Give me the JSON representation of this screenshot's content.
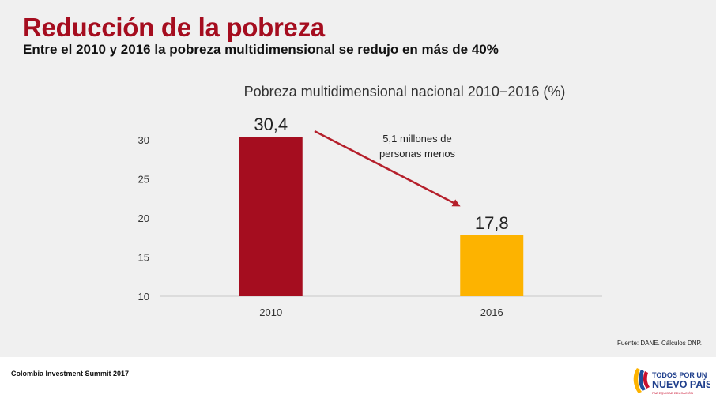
{
  "header": {
    "title": "Reducción de la pobreza",
    "subtitle": "Entre el 2010 y 2016 la pobreza multidimensional se redujo en más de 40%"
  },
  "chart_data": {
    "type": "bar",
    "title": "Pobreza multidimensional nacional 2010−2016 (%)",
    "categories": [
      "2010",
      "2016"
    ],
    "values": [
      30.4,
      17.8
    ],
    "value_labels": [
      "30,4",
      "17,8"
    ],
    "colors": [
      "#a50d1f",
      "#fdb300"
    ],
    "ylim": [
      10,
      30
    ],
    "yticks": [
      "10",
      "15",
      "20",
      "25",
      "30"
    ],
    "xlabel": "",
    "ylabel": "",
    "annotation": {
      "line1": "5,1 millones de",
      "line2": "personas menos",
      "arrow_color": "#b51f2b"
    }
  },
  "source": "Fuente: DANE. Cálculos DNP.",
  "footer": {
    "event": "Colombia Investment Summit 2017",
    "logo_line1": "TODOS POR UN",
    "logo_line2": "NUEVO PAÍS",
    "logo_tagline": "PAZ   EQUIDAD   EDUCACIÓN"
  }
}
